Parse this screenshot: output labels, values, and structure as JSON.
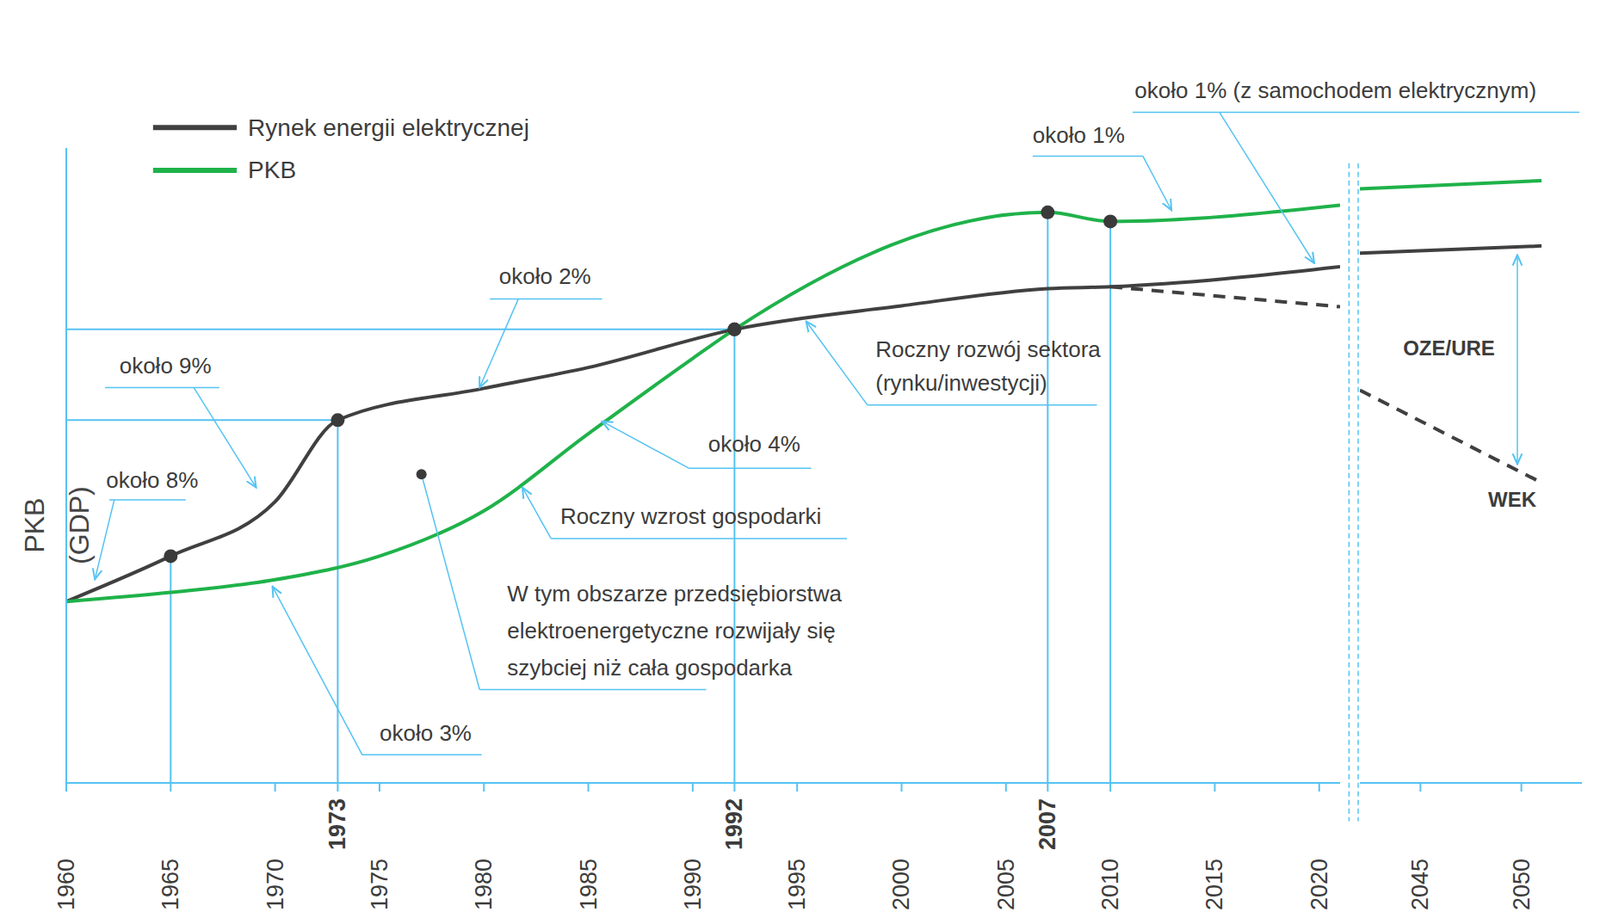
{
  "chart_data": {
    "type": "line",
    "y_label": "PKB (GDP)",
    "ylim": [
      0,
      7
    ],
    "yticks": [
      0,
      1,
      2,
      3,
      4,
      5,
      6
    ],
    "tick_labels": "x",
    "legend": "upper left",
    "guides_y": [
      4,
      5
    ],
    "panels": [
      {
        "xlim": [
          1960,
          2021
        ],
        "xticks": [
          1960,
          1965,
          1970,
          1973,
          1975,
          1980,
          1985,
          1990,
          1992,
          1995,
          2000,
          2005,
          2007,
          2010,
          2015,
          2020
        ],
        "series": [
          {
            "name": "Rynek energii elektrycznej",
            "color": "#404040",
            "x": [
              1960,
              1965,
              1970,
              1973,
              1980,
              1985,
              1992,
              2000,
              2007,
              2010,
              2021
            ],
            "values": [
              2.0,
              2.5,
              3.1,
              4.0,
              4.35,
              4.58,
              5.0,
              5.26,
              5.45,
              5.47,
              5.69
            ],
            "highlight": [
              1965,
              1973,
              1992
            ]
          },
          {
            "name": "PKB",
            "color": "#1fb24a",
            "x": [
              1960,
              1965,
              1970,
              1975,
              1980,
              1985,
              1990,
              1992,
              2007,
              2010,
              2021
            ],
            "values": [
              2.0,
              2.1,
              2.24,
              2.5,
              3.0,
              3.85,
              4.68,
              5.0,
              6.29,
              6.19,
              6.37
            ],
            "highlight": [
              1992,
              2007,
              2010
            ]
          },
          {
            "color": "#404040",
            "line_style": "dashed",
            "x": [
              2010,
              2021
            ],
            "values": [
              5.47,
              5.25
            ]
          }
        ]
      },
      {
        "xlim": [
          2042,
          2053
        ],
        "xticks": [
          2045,
          2050
        ],
        "series": [
          {
            "color": "#404040",
            "x": [
              2042,
              2051
            ],
            "values": [
              5.84,
              5.92
            ]
          },
          {
            "color": "#1fb24a",
            "x": [
              2042,
              2051
            ],
            "values": [
              6.55,
              6.64
            ]
          },
          {
            "color": "#404040",
            "line_style": "dashed",
            "x": [
              2042,
              2051
            ],
            "values": [
              4.33,
              3.31
            ]
          }
        ]
      }
    ],
    "annotations": [
      "około 8%",
      "około 9%",
      "około 2%",
      "około 3%",
      "około 4%",
      "Roczny wzrost gospodarki",
      "W tym obszarze przedsiębiorstwa elektroenergetyczne rozwijały się szybciej niż cała gospodarka",
      "Roczny rozwój sektora (rynku/inwestycji)",
      "około 1%",
      "około 1% (z samochodem elektrycznym)",
      "OZE/URE",
      "WEK"
    ]
  }
}
